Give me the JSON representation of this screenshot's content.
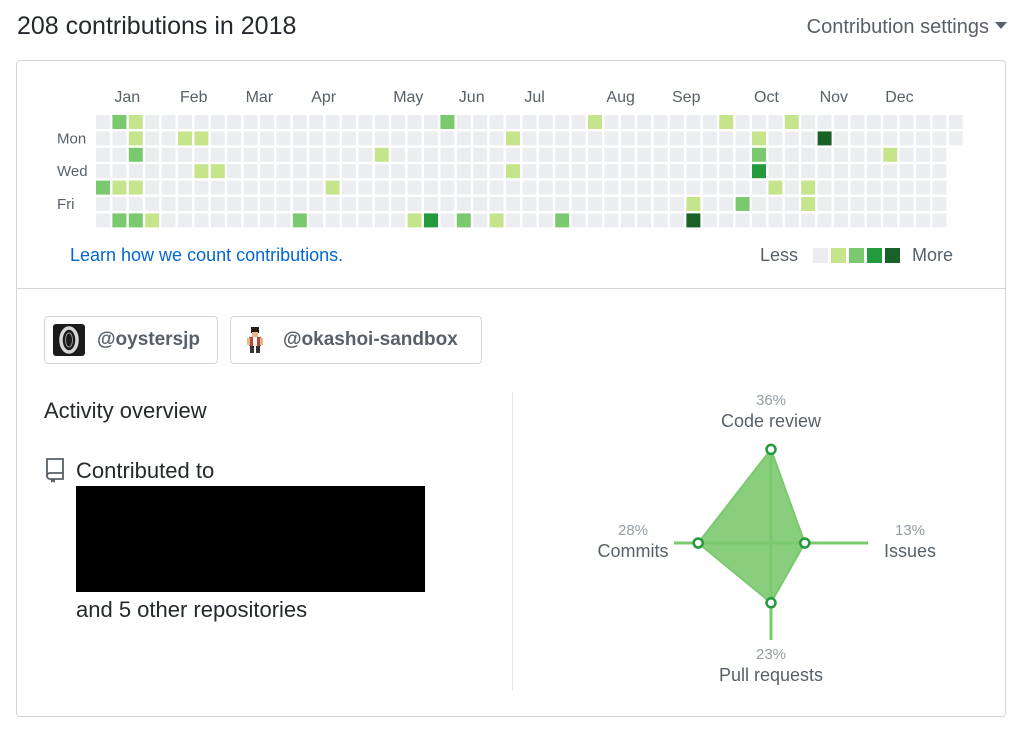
{
  "header": {
    "title": "208 contributions in 2018",
    "settings_label": "Contribution settings"
  },
  "calendar": {
    "months": [
      "Jan",
      "Feb",
      "Mar",
      "Apr",
      "May",
      "Jun",
      "Jul",
      "Aug",
      "Sep",
      "Oct",
      "Nov",
      "Dec"
    ],
    "month_start_weeks": [
      1,
      5,
      9,
      13,
      18,
      22,
      26,
      31,
      35,
      40,
      44,
      48
    ],
    "day_labels": [
      "Mon",
      "Wed",
      "Fri"
    ],
    "total_weeks": 53,
    "last_week_days": 2,
    "level_colors": [
      "#ebedf0",
      "#c6e48b",
      "#7bc96f",
      "#239a3b",
      "#196127"
    ],
    "active_days": [
      {
        "w": 1,
        "d": 0,
        "l": 2
      },
      {
        "w": 2,
        "d": 0,
        "l": 1
      },
      {
        "w": 21,
        "d": 0,
        "l": 2
      },
      {
        "w": 30,
        "d": 0,
        "l": 1
      },
      {
        "w": 38,
        "d": 0,
        "l": 1
      },
      {
        "w": 42,
        "d": 0,
        "l": 1
      },
      {
        "w": 2,
        "d": 1,
        "l": 1
      },
      {
        "w": 5,
        "d": 1,
        "l": 1
      },
      {
        "w": 6,
        "d": 1,
        "l": 1
      },
      {
        "w": 25,
        "d": 1,
        "l": 1
      },
      {
        "w": 40,
        "d": 1,
        "l": 1
      },
      {
        "w": 44,
        "d": 1,
        "l": 4
      },
      {
        "w": 2,
        "d": 2,
        "l": 2
      },
      {
        "w": 17,
        "d": 2,
        "l": 1
      },
      {
        "w": 40,
        "d": 2,
        "l": 2
      },
      {
        "w": 48,
        "d": 2,
        "l": 1
      },
      {
        "w": 6,
        "d": 3,
        "l": 1
      },
      {
        "w": 7,
        "d": 3,
        "l": 1
      },
      {
        "w": 25,
        "d": 3,
        "l": 1
      },
      {
        "w": 40,
        "d": 3,
        "l": 3
      },
      {
        "w": 0,
        "d": 4,
        "l": 2
      },
      {
        "w": 1,
        "d": 4,
        "l": 1
      },
      {
        "w": 2,
        "d": 4,
        "l": 1
      },
      {
        "w": 14,
        "d": 4,
        "l": 1
      },
      {
        "w": 41,
        "d": 4,
        "l": 1
      },
      {
        "w": 43,
        "d": 4,
        "l": 1
      },
      {
        "w": 36,
        "d": 5,
        "l": 1
      },
      {
        "w": 39,
        "d": 5,
        "l": 2
      },
      {
        "w": 43,
        "d": 5,
        "l": 1
      },
      {
        "w": 1,
        "d": 6,
        "l": 2
      },
      {
        "w": 2,
        "d": 6,
        "l": 2
      },
      {
        "w": 3,
        "d": 6,
        "l": 1
      },
      {
        "w": 12,
        "d": 6,
        "l": 2
      },
      {
        "w": 19,
        "d": 6,
        "l": 1
      },
      {
        "w": 20,
        "d": 6,
        "l": 3
      },
      {
        "w": 22,
        "d": 6,
        "l": 2
      },
      {
        "w": 24,
        "d": 6,
        "l": 1
      },
      {
        "w": 28,
        "d": 6,
        "l": 2
      },
      {
        "w": 36,
        "d": 6,
        "l": 4
      }
    ]
  },
  "footer": {
    "learn_link": "Learn how we count contributions.",
    "legend_less": "Less",
    "legend_more": "More"
  },
  "orgs": [
    {
      "name": "@oystersjp",
      "avatar": "oysters-avatar"
    },
    {
      "name": "@okashoi-sandbox",
      "avatar": "pixel-character-avatar"
    }
  ],
  "activity": {
    "title": "Activity overview",
    "contributed_to": "Contributed to",
    "other_repos": "and 5 other repositories",
    "repo_icon": "repo-icon"
  },
  "chart_data": {
    "type": "radar",
    "axes": [
      {
        "label": "Code review",
        "pct": 36,
        "pct_label": "36%",
        "dir": "up"
      },
      {
        "label": "Issues",
        "pct": 13,
        "pct_label": "13%",
        "dir": "right"
      },
      {
        "label": "Pull requests",
        "pct": 23,
        "pct_label": "23%",
        "dir": "down"
      },
      {
        "label": "Commits",
        "pct": 28,
        "pct_label": "28%",
        "dir": "left"
      }
    ],
    "fill_color": "#7bc96f",
    "axis_color": "#7bc96f"
  }
}
